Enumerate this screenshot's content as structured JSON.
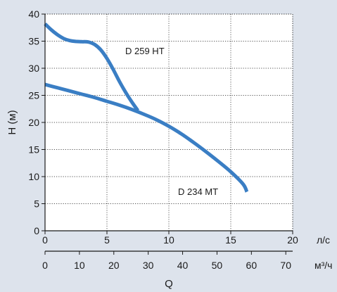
{
  "chart_data": {
    "type": "line",
    "ylabel": "H (м)",
    "xlabel": "Q",
    "ylim": [
      0,
      40
    ],
    "yticks": [
      0,
      5,
      10,
      15,
      20,
      25,
      30,
      35,
      40
    ],
    "x_primary": {
      "unit": "л/с",
      "lim": [
        0,
        20
      ],
      "ticks": [
        0,
        5,
        10,
        15,
        20
      ]
    },
    "x_secondary": {
      "unit": "м³/ч",
      "lim": [
        0,
        72
      ],
      "ticks": [
        0,
        10,
        20,
        30,
        40,
        50,
        60,
        70
      ]
    },
    "grid": true,
    "line_color": "#3a7ec4",
    "series": [
      {
        "name": "D 259 HT",
        "x": [
          0,
          0.5,
          1,
          1.5,
          2,
          2.5,
          3,
          3.5,
          4,
          4.5,
          5,
          5.5,
          6,
          6.5,
          7,
          7.5
        ],
        "y": [
          38.2,
          37.1,
          36.2,
          35.5,
          35.1,
          34.95,
          34.9,
          34.85,
          34.4,
          33.4,
          31.8,
          29.8,
          27.6,
          25.6,
          23.8,
          22.2
        ]
      },
      {
        "name": "D 234 MT",
        "x": [
          0,
          1,
          2,
          3,
          4,
          5,
          6,
          7,
          8,
          9,
          10,
          11,
          12,
          13,
          14,
          15,
          16,
          16.3
        ],
        "y": [
          27,
          26.4,
          25.8,
          25.2,
          24.6,
          23.9,
          23.2,
          22.4,
          21.5,
          20.5,
          19.3,
          17.9,
          16.3,
          14.6,
          12.8,
          10.9,
          8.6,
          7.2
        ]
      }
    ]
  }
}
